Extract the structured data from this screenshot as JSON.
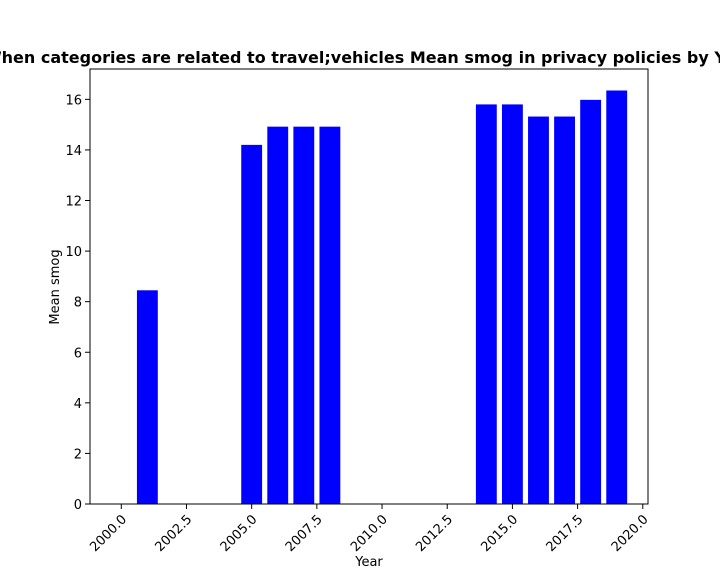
{
  "chart_data": {
    "type": "bar",
    "title": "When categories are related to travel;vehicles Mean smog in privacy policies by Year",
    "xlabel": "Year",
    "ylabel": "Mean smog",
    "xlim": [
      1998.8,
      2020.2
    ],
    "ylim": [
      0,
      17.2
    ],
    "x_ticks": [
      2000.0,
      2002.5,
      2005.0,
      2007.5,
      2010.0,
      2012.5,
      2015.0,
      2017.5,
      2020.0
    ],
    "x_tick_labels": [
      "2000.0",
      "2002.5",
      "2005.0",
      "2007.5",
      "2010.0",
      "2012.5",
      "2015.0",
      "2017.5",
      "2020.0"
    ],
    "y_ticks": [
      0,
      2,
      4,
      6,
      8,
      10,
      12,
      14,
      16
    ],
    "y_tick_labels": [
      "0",
      "2",
      "4",
      "6",
      "8",
      "10",
      "12",
      "14",
      "16"
    ],
    "bar_color": "#0000ff",
    "categories": [
      2001,
      2005,
      2006,
      2007,
      2008,
      2014,
      2015,
      2016,
      2017,
      2018,
      2019
    ],
    "values": [
      8.45,
      14.2,
      14.92,
      14.92,
      14.92,
      15.8,
      15.8,
      15.32,
      15.32,
      15.98,
      16.35
    ],
    "grid": false
  }
}
